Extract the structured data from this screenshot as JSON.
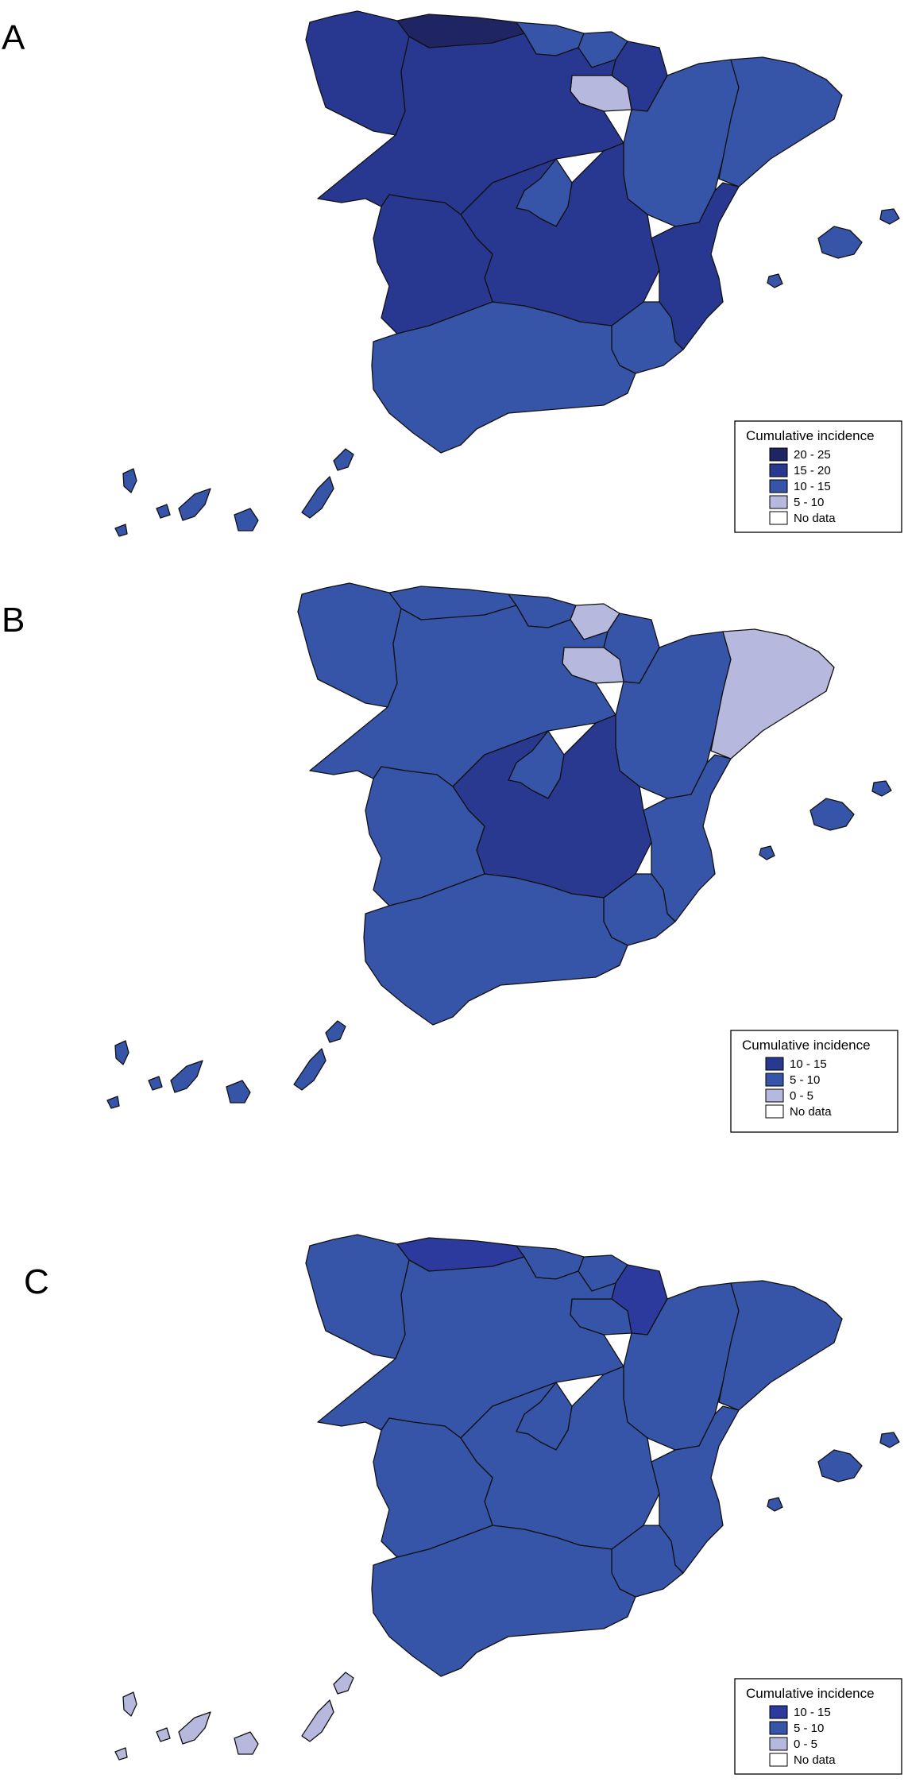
{
  "colors": {
    "c_20_25": "#1f2462",
    "c_15_20": "#283891",
    "c_10_15": "#3654a8",
    "c_5_10": "#b7b8dd",
    "no_data": "#ffffff",
    "b_10_15": "#293990",
    "b_5_10": "#3654a8",
    "b_0_5": "#b7b8dd",
    "c_dark": "#2b3a9c",
    "c_mid": "#3654a8",
    "c_light": "#b7b8dd"
  },
  "panels": [
    {
      "letter": "A",
      "legend": {
        "title": "Cumulative incidence",
        "items": [
          {
            "label": "20 - 25",
            "color": "#1f2462"
          },
          {
            "label": "15 - 20",
            "color": "#283891"
          },
          {
            "label": "10 - 15",
            "color": "#3654a8"
          },
          {
            "label": "5 - 10",
            "color": "#b7b8dd"
          },
          {
            "label": "No data",
            "color": "#ffffff"
          }
        ]
      }
    },
    {
      "letter": "B",
      "legend": {
        "title": "Cumulative incidence",
        "items": [
          {
            "label": "10 - 15",
            "color": "#293990"
          },
          {
            "label": "5 - 10",
            "color": "#3654a8"
          },
          {
            "label": "0 - 5",
            "color": "#b7b8dd"
          },
          {
            "label": "No data",
            "color": "#ffffff"
          }
        ]
      }
    },
    {
      "letter": "C",
      "legend": {
        "title": "Cumulative incidence",
        "items": [
          {
            "label": "10 - 15",
            "color": "#2b3a9c"
          },
          {
            "label": "5 - 10",
            "color": "#3654a8"
          },
          {
            "label": "0 - 5",
            "color": "#b7b8dd"
          },
          {
            "label": "No data",
            "color": "#ffffff"
          }
        ]
      }
    }
  ],
  "region_colors": {
    "A": {
      "galicia": "#283891",
      "asturias": "#1f2462",
      "cantabria": "#3654a8",
      "pais_vasco": "#3654a8",
      "navarra": "#283891",
      "la_rioja": "#b7b8dd",
      "castilla_leon": "#283891",
      "aragon": "#3654a8",
      "cataluna": "#3654a8",
      "madrid": "#3654a8",
      "castilla_la_mancha": "#283891",
      "extremadura": "#283891",
      "valencia": "#283891",
      "murcia": "#3654a8",
      "andalucia": "#3654a8",
      "baleares": "#3654a8",
      "canarias": "#3654a8"
    },
    "B": {
      "galicia": "#3654a8",
      "asturias": "#3654a8",
      "cantabria": "#3654a8",
      "pais_vasco": "#b7b8dd",
      "navarra": "#3654a8",
      "la_rioja": "#b7b8dd",
      "castilla_leon": "#3654a8",
      "aragon": "#3654a8",
      "cataluna": "#b7b8dd",
      "madrid": "#3654a8",
      "castilla_la_mancha": "#293990",
      "extremadura": "#3654a8",
      "valencia": "#3654a8",
      "murcia": "#3654a8",
      "andalucia": "#3654a8",
      "baleares": "#3654a8",
      "canarias": "#3654a8"
    },
    "C": {
      "galicia": "#3654a8",
      "asturias": "#2b3a9c",
      "cantabria": "#3654a8",
      "pais_vasco": "#3654a8",
      "navarra": "#2b3a9c",
      "la_rioja": "#3654a8",
      "castilla_leon": "#3654a8",
      "aragon": "#3654a8",
      "cataluna": "#3654a8",
      "madrid": "#3654a8",
      "castilla_la_mancha": "#3654a8",
      "extremadura": "#3654a8",
      "valencia": "#3654a8",
      "murcia": "#3654a8",
      "andalucia": "#3654a8",
      "baleares": "#3654a8",
      "canarias": "#b7b8dd"
    }
  }
}
